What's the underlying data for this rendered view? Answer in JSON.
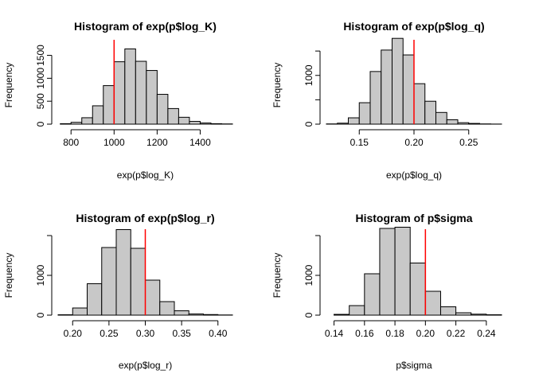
{
  "chart_data": [
    {
      "type": "bar",
      "title": "Histogram of exp(p$log_K)",
      "xlabel": "exp(p$log_K)",
      "ylabel": "Frequency",
      "xlim": [
        740,
        1550
      ],
      "ylim": [
        0,
        1700
      ],
      "x_ticks": [
        800,
        1000,
        1200,
        1400
      ],
      "x_tick_labels": [
        "800",
        "1000",
        "1200",
        "1400"
      ],
      "y_ticks": [
        0,
        500,
        1000,
        1500
      ],
      "y_tick_labels": [
        "0",
        "500",
        "1000",
        "1500"
      ],
      "bin_width": 50,
      "bins_start": [
        750,
        800,
        850,
        900,
        950,
        1000,
        1050,
        1100,
        1150,
        1200,
        1250,
        1300,
        1350,
        1400,
        1450,
        1500
      ],
      "values": [
        10,
        40,
        140,
        400,
        840,
        1360,
        1640,
        1370,
        1170,
        650,
        340,
        150,
        60,
        25,
        10,
        5
      ],
      "reference_line": 1000,
      "bar_color": "#c8c8c8",
      "line_color": "#ff0000"
    },
    {
      "type": "bar",
      "title": "Histogram of exp(p$log_q)",
      "xlabel": "exp(p$log_q)",
      "ylabel": "Frequency",
      "xlim": [
        0.12,
        0.28
      ],
      "ylim": [
        0,
        1600
      ],
      "x_ticks": [
        0.15,
        0.2,
        0.25
      ],
      "x_tick_labels": [
        "0.15",
        "0.20",
        "0.25"
      ],
      "y_ticks": [
        0,
        500,
        1000,
        1500
      ],
      "y_tick_labels": [
        "0",
        "",
        "1000",
        ""
      ],
      "bin_width": 0.01,
      "bins_start": [
        0.12,
        0.13,
        0.14,
        0.15,
        0.16,
        0.17,
        0.18,
        0.19,
        0.2,
        0.21,
        0.22,
        0.23,
        0.24,
        0.25,
        0.26,
        0.27
      ],
      "values": [
        5,
        20,
        130,
        440,
        1080,
        1520,
        1760,
        1420,
        830,
        470,
        240,
        90,
        30,
        15,
        5,
        2
      ],
      "reference_line": 0.2,
      "bar_color": "#c8c8c8",
      "line_color": "#ff0000"
    },
    {
      "type": "bar",
      "title": "Histogram of exp(p$log_r)",
      "xlabel": "exp(p$log_r)",
      "ylabel": "Frequency",
      "xlim": [
        0.18,
        0.42
      ],
      "ylim": [
        0,
        2000
      ],
      "x_ticks": [
        0.2,
        0.25,
        0.3,
        0.35,
        0.4
      ],
      "x_tick_labels": [
        "0.20",
        "0.25",
        "0.30",
        "0.35",
        "0.40"
      ],
      "y_ticks": [
        0,
        1000,
        2000
      ],
      "y_tick_labels": [
        "0",
        "1000",
        ""
      ],
      "bin_width": 0.02,
      "bins_start": [
        0.18,
        0.2,
        0.22,
        0.24,
        0.26,
        0.28,
        0.3,
        0.32,
        0.34,
        0.36,
        0.38,
        0.4
      ],
      "values": [
        10,
        180,
        790,
        1700,
        2150,
        1680,
        880,
        340,
        110,
        30,
        15,
        5
      ],
      "reference_line": 0.3,
      "bar_color": "#c8c8c8",
      "line_color": "#ff0000"
    },
    {
      "type": "bar",
      "title": "Histogram of p$sigma",
      "xlabel": "p$sigma",
      "ylabel": "Frequency",
      "xlim": [
        0.135,
        0.25
      ],
      "ylim": [
        0,
        2000
      ],
      "x_ticks": [
        0.14,
        0.16,
        0.18,
        0.2,
        0.22,
        0.24
      ],
      "x_tick_labels": [
        "0.14",
        "0.16",
        "0.18",
        "0.20",
        "0.22",
        "0.24"
      ],
      "y_ticks": [
        0,
        1000,
        2000
      ],
      "y_tick_labels": [
        "0",
        "1000",
        ""
      ],
      "bin_width": 0.01,
      "bins_start": [
        0.14,
        0.15,
        0.16,
        0.17,
        0.18,
        0.19,
        0.2,
        0.21,
        0.22,
        0.23,
        0.24
      ],
      "values": [
        20,
        240,
        1040,
        2180,
        2210,
        1310,
        600,
        210,
        60,
        25,
        10
      ],
      "reference_line": 0.2,
      "bar_color": "#c8c8c8",
      "line_color": "#ff0000"
    }
  ]
}
